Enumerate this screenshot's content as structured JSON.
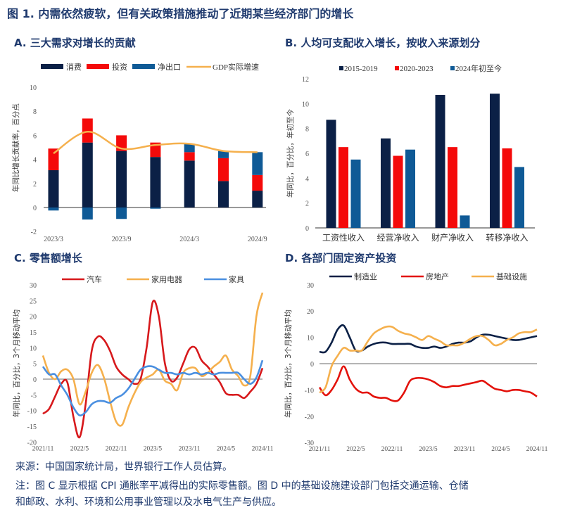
{
  "figure_title": "图 1. 内需依然疲软，但有关政策措施推动了近期某些经济部门的增长",
  "source": "来源：中国国家统计局，世界银行工作人员估算。",
  "note_line1": "注：图 C 显示根据 CPI 通胀率平减得出的实际零售额。图 D 中的基础设施建设部门包括交通运输、仓储",
  "note_line2": "和邮政、水利、环境和公用事业管理以及水电气生产与供应。",
  "chart_data": [
    {
      "panel": "A",
      "title": "A. 三大需求对增长的贡献",
      "type": "bar",
      "stacked": true,
      "ylabel": "年同比增长贡献率，百分点",
      "ylim": [
        -2,
        10
      ],
      "yticks": [
        -2,
        0,
        2,
        4,
        6,
        8,
        10
      ],
      "categories": [
        "2023/3",
        "2023/6",
        "2023/9",
        "2023/12",
        "2024/3",
        "2024/6",
        "2024/9"
      ],
      "xtick_labels": [
        "2023/3",
        "",
        "2023/9",
        "",
        "2024/3",
        "",
        "2024/9"
      ],
      "legend": "top",
      "series": [
        {
          "name": "消费",
          "type": "bar",
          "color": "#0b2046",
          "values": [
            3.1,
            5.4,
            4.7,
            4.2,
            3.9,
            2.2,
            1.4
          ]
        },
        {
          "name": "投资",
          "type": "bar",
          "color": "#f40a0a",
          "values": [
            1.8,
            2.0,
            1.3,
            1.2,
            0.7,
            1.9,
            1.3
          ]
        },
        {
          "name": "净出口",
          "type": "bar",
          "color": "#0f5a96",
          "values": [
            -0.25,
            -1.0,
            -0.95,
            -0.1,
            0.7,
            0.6,
            1.9
          ]
        },
        {
          "name": "GDP实际增速",
          "type": "line",
          "color": "#f5b04d",
          "values": [
            4.5,
            6.3,
            4.9,
            5.2,
            5.3,
            4.7,
            4.6
          ]
        }
      ]
    },
    {
      "panel": "B",
      "title": "B. 人均可支配收入增长，按收入来源划分",
      "type": "bar",
      "ylabel": "年同比，百分比，年初至今",
      "ylim": [
        0,
        12
      ],
      "yticks": [
        0,
        2,
        4,
        6,
        8,
        10,
        12
      ],
      "categories": [
        "工资性收入",
        "经营净收入",
        "财产净收入",
        "转移净收入"
      ],
      "legend": "top",
      "series": [
        {
          "name": "2015-2019",
          "color": "#0b2046",
          "values": [
            8.7,
            7.2,
            10.7,
            10.8
          ]
        },
        {
          "name": "2020-2023",
          "color": "#f40a0a",
          "values": [
            6.5,
            5.8,
            6.5,
            6.4
          ]
        },
        {
          "name": "2024年初至今",
          "color": "#0f5a96",
          "values": [
            5.5,
            6.3,
            1.0,
            4.9
          ]
        }
      ]
    },
    {
      "panel": "C",
      "title": "C. 零售额增长",
      "type": "line",
      "ylabel": "年同比，百分比，3个月移动平均",
      "ylim": [
        -20,
        30
      ],
      "yticks": [
        -20,
        -15,
        -10,
        -5,
        0,
        5,
        10,
        15,
        20,
        25,
        30
      ],
      "x_start": "2021/11",
      "x_end": "2024/11",
      "x_frequency": "monthly",
      "xtick_labels": [
        "2021/11",
        "2022/5",
        "2022/11",
        "2023/5",
        "2023/11",
        "2024/5",
        "2024/11"
      ],
      "legend": "top",
      "series": [
        {
          "name": "汽车",
          "color": "#d7191c",
          "values": [
            -11,
            -9.5,
            -5.5,
            -1.5,
            -1,
            -12,
            -18.5,
            -8,
            9,
            13.5,
            12.5,
            9,
            4,
            1.5,
            0,
            -1.5,
            0,
            10,
            24.5,
            20,
            5,
            -0.5,
            0.5,
            5,
            9.5,
            10,
            6,
            4,
            1.5,
            -1,
            -4.5,
            -5,
            -5,
            -6,
            -4,
            -1.5,
            3.5
          ]
        },
        {
          "name": "家用电器",
          "color": "#f5b04d",
          "values": [
            7.5,
            2,
            0,
            2.5,
            3,
            0,
            -8,
            -4,
            2,
            4.5,
            0.5,
            -7,
            -13.5,
            -14.5,
            -9,
            -4.5,
            -1,
            0.5,
            1.5,
            3,
            -0.5,
            -1.5,
            -3.5,
            2,
            3.5,
            3.5,
            1,
            2,
            4,
            5.5,
            7.5,
            3,
            1,
            -2,
            1,
            20,
            27.5
          ]
        },
        {
          "name": "家具",
          "color": "#4a8fe0",
          "values": [
            4,
            1.5,
            1.5,
            -2,
            -5,
            -9,
            -11.5,
            -10.5,
            -8,
            -7,
            -7,
            -7.5,
            -6,
            -5,
            -3,
            0,
            3,
            4,
            4,
            3,
            2,
            2,
            1.5,
            2,
            1.5,
            2,
            1.5,
            2,
            1.5,
            2,
            2,
            2,
            2,
            0,
            -1.5,
            0.5,
            6
          ]
        }
      ]
    },
    {
      "panel": "D",
      "title": "D. 各部门固定资产投资",
      "type": "line",
      "ylabel": "年同比，百分比，3个月移动平均",
      "ylim": [
        -30,
        30
      ],
      "yticks": [
        -30,
        -20,
        -10,
        0,
        10,
        20,
        30
      ],
      "x_start": "2021/11",
      "x_end": "2024/11",
      "x_frequency": "monthly",
      "xtick_labels": [
        "2021/11",
        "2022/5",
        "2022/11",
        "2023/5",
        "2023/11",
        "2024/5",
        "2024/11"
      ],
      "legend": "top",
      "series": [
        {
          "name": "制造业",
          "color": "#0b2046",
          "values": [
            4.5,
            4.5,
            8,
            13,
            14.5,
            10,
            5,
            5,
            6.5,
            7.5,
            8,
            8,
            7.5,
            7.5,
            7.5,
            7.5,
            6.5,
            6,
            6,
            6.5,
            6,
            6.5,
            7.5,
            8,
            8,
            8.5,
            10,
            11,
            11,
            10.5,
            10,
            9.5,
            9,
            9,
            9.5,
            10,
            10.5
          ]
        },
        {
          "name": "房地产",
          "color": "#e3120b",
          "values": [
            -9,
            -12,
            -10,
            -6,
            -1,
            -6,
            -9.5,
            -11,
            -11,
            -12.5,
            -13,
            -13,
            -14,
            -14,
            -11,
            -6.5,
            -5.5,
            -5.5,
            -6,
            -7,
            -8.5,
            -9,
            -8.5,
            -8.5,
            -8,
            -7.5,
            -7,
            -6.5,
            -8,
            -9.5,
            -10,
            -10.5,
            -10,
            -10,
            -10.5,
            -11,
            -12.5
          ]
        },
        {
          "name": "基础设施",
          "color": "#f5b04d",
          "values": [
            -11,
            -9,
            -1,
            3,
            6,
            5,
            5,
            5,
            8.5,
            11.5,
            13,
            14,
            14,
            12.5,
            11.5,
            11,
            10,
            9,
            10.5,
            9.5,
            8.5,
            7,
            7,
            7,
            8,
            9.5,
            10.5,
            10.5,
            9,
            7,
            7.5,
            9,
            10,
            11.5,
            12,
            12,
            13
          ]
        }
      ]
    }
  ]
}
